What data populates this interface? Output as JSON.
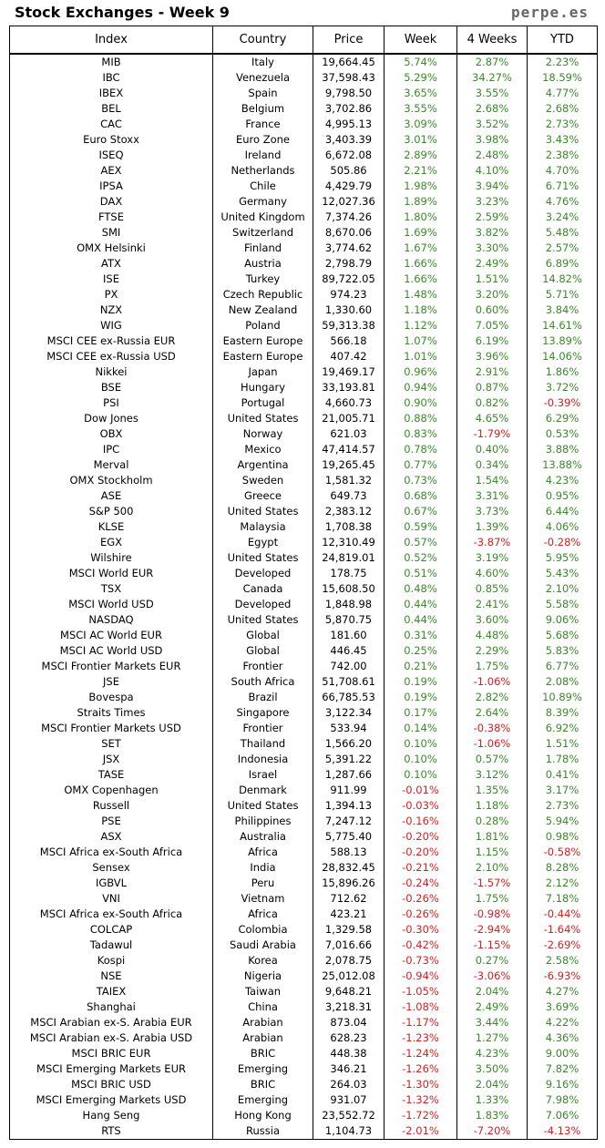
{
  "header": {
    "title": "Stock Exchanges - Week 9",
    "brand": "perpe.es"
  },
  "columns": [
    "Index",
    "Country",
    "Price",
    "Week",
    "4 Weeks",
    "YTD"
  ],
  "colors": {
    "positive": "#3a8a2a",
    "negative": "#d42020"
  },
  "rows": [
    [
      "MIB",
      "Italy",
      "19,664.45",
      "5.74%",
      "2.87%",
      "2.23%"
    ],
    [
      "IBC",
      "Venezuela",
      "37,598.43",
      "5.29%",
      "34.27%",
      "18.59%"
    ],
    [
      "IBEX",
      "Spain",
      "9,798.50",
      "3.65%",
      "3.55%",
      "4.77%"
    ],
    [
      "BEL",
      "Belgium",
      "3,702.86",
      "3.55%",
      "2.68%",
      "2.68%"
    ],
    [
      "CAC",
      "France",
      "4,995.13",
      "3.09%",
      "3.52%",
      "2.73%"
    ],
    [
      "Euro Stoxx",
      "Euro Zone",
      "3,403.39",
      "3.01%",
      "3.98%",
      "3.43%"
    ],
    [
      "ISEQ",
      "Ireland",
      "6,672.08",
      "2.89%",
      "2.48%",
      "2.38%"
    ],
    [
      "AEX",
      "Netherlands",
      "505.86",
      "2.21%",
      "4.10%",
      "4.70%"
    ],
    [
      "IPSA",
      "Chile",
      "4,429.79",
      "1.98%",
      "3.94%",
      "6.71%"
    ],
    [
      "DAX",
      "Germany",
      "12,027.36",
      "1.89%",
      "3.23%",
      "4.76%"
    ],
    [
      "FTSE",
      "United Kingdom",
      "7,374.26",
      "1.80%",
      "2.59%",
      "3.24%"
    ],
    [
      "SMI",
      "Switzerland",
      "8,670.06",
      "1.69%",
      "3.82%",
      "5.48%"
    ],
    [
      "OMX Helsinki",
      "Finland",
      "3,774.62",
      "1.67%",
      "3.30%",
      "2.57%"
    ],
    [
      "ATX",
      "Austria",
      "2,798.79",
      "1.66%",
      "2.49%",
      "6.89%"
    ],
    [
      "ISE",
      "Turkey",
      "89,722.05",
      "1.66%",
      "1.51%",
      "14.82%"
    ],
    [
      "PX",
      "Czech Republic",
      "974.23",
      "1.48%",
      "3.20%",
      "5.71%"
    ],
    [
      "NZX",
      "New Zealand",
      "1,330.60",
      "1.18%",
      "0.60%",
      "3.84%"
    ],
    [
      "WIG",
      "Poland",
      "59,313.38",
      "1.12%",
      "7.05%",
      "14.61%"
    ],
    [
      "MSCI CEE ex-Russia EUR",
      "Eastern Europe",
      "566.18",
      "1.07%",
      "6.19%",
      "13.89%"
    ],
    [
      "MSCI CEE ex-Russia USD",
      "Eastern Europe",
      "407.42",
      "1.01%",
      "3.96%",
      "14.06%"
    ],
    [
      "Nikkei",
      "Japan",
      "19,469.17",
      "0.96%",
      "2.91%",
      "1.86%"
    ],
    [
      "BSE",
      "Hungary",
      "33,193.81",
      "0.94%",
      "0.87%",
      "3.72%"
    ],
    [
      "PSI",
      "Portugal",
      "4,660.73",
      "0.90%",
      "0.82%",
      "-0.39%"
    ],
    [
      "Dow Jones",
      "United States",
      "21,005.71",
      "0.88%",
      "4.65%",
      "6.29%"
    ],
    [
      "OBX",
      "Norway",
      "621.03",
      "0.83%",
      "-1.79%",
      "0.53%"
    ],
    [
      "IPC",
      "Mexico",
      "47,414.57",
      "0.78%",
      "0.40%",
      "3.88%"
    ],
    [
      "Merval",
      "Argentina",
      "19,265.45",
      "0.77%",
      "0.34%",
      "13.88%"
    ],
    [
      "OMX Stockholm",
      "Sweden",
      "1,581.32",
      "0.73%",
      "1.54%",
      "4.23%"
    ],
    [
      "ASE",
      "Greece",
      "649.73",
      "0.68%",
      "3.31%",
      "0.95%"
    ],
    [
      "S&P 500",
      "United States",
      "2,383.12",
      "0.67%",
      "3.73%",
      "6.44%"
    ],
    [
      "KLSE",
      "Malaysia",
      "1,708.38",
      "0.59%",
      "1.39%",
      "4.06%"
    ],
    [
      "EGX",
      "Egypt",
      "12,310.49",
      "0.57%",
      "-3.87%",
      "-0.28%"
    ],
    [
      "Wilshire",
      "United States",
      "24,819.01",
      "0.52%",
      "3.19%",
      "5.95%"
    ],
    [
      "MSCI World EUR",
      "Developed",
      "178.75",
      "0.51%",
      "4.60%",
      "5.43%"
    ],
    [
      "TSX",
      "Canada",
      "15,608.50",
      "0.48%",
      "0.85%",
      "2.10%"
    ],
    [
      "MSCI World USD",
      "Developed",
      "1,848.98",
      "0.44%",
      "2.41%",
      "5.58%"
    ],
    [
      "NASDAQ",
      "United States",
      "5,870.75",
      "0.44%",
      "3.60%",
      "9.06%"
    ],
    [
      "MSCI AC World EUR",
      "Global",
      "181.60",
      "0.31%",
      "4.48%",
      "5.68%"
    ],
    [
      "MSCI AC World USD",
      "Global",
      "446.45",
      "0.25%",
      "2.29%",
      "5.83%"
    ],
    [
      "MSCI Frontier Markets EUR",
      "Frontier",
      "742.00",
      "0.21%",
      "1.75%",
      "6.77%"
    ],
    [
      "JSE",
      "South Africa",
      "51,708.61",
      "0.19%",
      "-1.06%",
      "2.08%"
    ],
    [
      "Bovespa",
      "Brazil",
      "66,785.53",
      "0.19%",
      "2.82%",
      "10.89%"
    ],
    [
      "Straits Times",
      "Singapore",
      "3,122.34",
      "0.17%",
      "2.64%",
      "8.39%"
    ],
    [
      "MSCI Frontier Markets USD",
      "Frontier",
      "533.94",
      "0.14%",
      "-0.38%",
      "6.92%"
    ],
    [
      "SET",
      "Thailand",
      "1,566.20",
      "0.10%",
      "-1.06%",
      "1.51%"
    ],
    [
      "JSX",
      "Indonesia",
      "5,391.22",
      "0.10%",
      "0.57%",
      "1.78%"
    ],
    [
      "TASE",
      "Israel",
      "1,287.66",
      "0.10%",
      "3.12%",
      "0.41%"
    ],
    [
      "OMX Copenhagen",
      "Denmark",
      "911.99",
      "-0.01%",
      "1.35%",
      "3.17%"
    ],
    [
      "Russell",
      "United States",
      "1,394.13",
      "-0.03%",
      "1.18%",
      "2.73%"
    ],
    [
      "PSE",
      "Philippines",
      "7,247.12",
      "-0.16%",
      "0.28%",
      "5.94%"
    ],
    [
      "ASX",
      "Australia",
      "5,775.40",
      "-0.20%",
      "1.81%",
      "0.98%"
    ],
    [
      "MSCI Africa ex-South Africa",
      "Africa",
      "588.13",
      "-0.20%",
      "1.15%",
      "-0.58%"
    ],
    [
      "Sensex",
      "India",
      "28,832.45",
      "-0.21%",
      "2.10%",
      "8.28%"
    ],
    [
      "IGBVL",
      "Peru",
      "15,896.26",
      "-0.24%",
      "-1.57%",
      "2.12%"
    ],
    [
      "VNI",
      "Vietnam",
      "712.62",
      "-0.26%",
      "1.75%",
      "7.18%"
    ],
    [
      "MSCI Africa ex-South Africa",
      "Africa",
      "423.21",
      "-0.26%",
      "-0.98%",
      "-0.44%"
    ],
    [
      "COLCAP",
      "Colombia",
      "1,329.58",
      "-0.30%",
      "-2.94%",
      "-1.64%"
    ],
    [
      "Tadawul",
      "Saudi Arabia",
      "7,016.66",
      "-0.42%",
      "-1.15%",
      "-2.69%"
    ],
    [
      "Kospi",
      "Korea",
      "2,078.75",
      "-0.73%",
      "0.27%",
      "2.58%"
    ],
    [
      "NSE",
      "Nigeria",
      "25,012.08",
      "-0.94%",
      "-3.06%",
      "-6.93%"
    ],
    [
      "TAIEX",
      "Taiwan",
      "9,648.21",
      "-1.05%",
      "2.04%",
      "4.27%"
    ],
    [
      "Shanghai",
      "China",
      "3,218.31",
      "-1.08%",
      "2.49%",
      "3.69%"
    ],
    [
      "MSCI Arabian ex-S. Arabia EUR",
      "Arabian",
      "873.04",
      "-1.17%",
      "3.44%",
      "4.22%"
    ],
    [
      "MSCI Arabian ex-S. Arabia USD",
      "Arabian",
      "628.23",
      "-1.23%",
      "1.27%",
      "4.36%"
    ],
    [
      "MSCI BRIC EUR",
      "BRIC",
      "448.38",
      "-1.24%",
      "4.23%",
      "9.00%"
    ],
    [
      "MSCI Emerging Markets EUR",
      "Emerging",
      "346.21",
      "-1.26%",
      "3.50%",
      "7.82%"
    ],
    [
      "MSCI BRIC USD",
      "BRIC",
      "264.03",
      "-1.30%",
      "2.04%",
      "9.16%"
    ],
    [
      "MSCI Emerging Markets USD",
      "Emerging",
      "931.07",
      "-1.32%",
      "1.33%",
      "7.98%"
    ],
    [
      "Hang Seng",
      "Hong Kong",
      "23,552.72",
      "-1.72%",
      "1.83%",
      "7.06%"
    ],
    [
      "RTS",
      "Russia",
      "1,104.73",
      "-2.01%",
      "-7.20%",
      "-4.13%"
    ]
  ]
}
